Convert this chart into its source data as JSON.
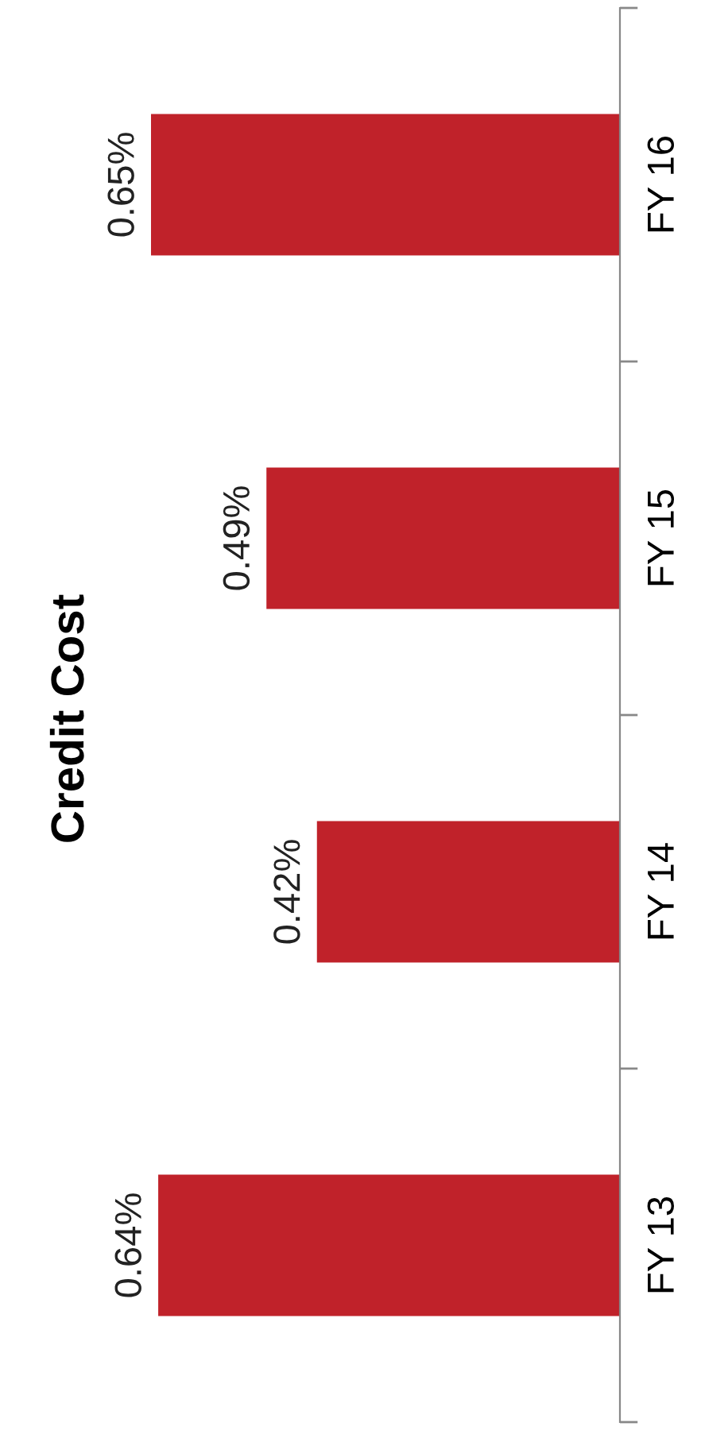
{
  "chart_data": {
    "type": "bar",
    "orientation": "horizontal",
    "title": "Credit Cost",
    "categories": [
      "FY 16",
      "FY 15",
      "FY 14",
      "FY 13"
    ],
    "values": [
      0.65,
      0.49,
      0.42,
      0.64
    ],
    "value_labels": [
      "0.65%",
      "0.49%",
      "0.42%",
      "0.64%"
    ],
    "color": "#c0222a",
    "grid": false,
    "legend": false
  }
}
